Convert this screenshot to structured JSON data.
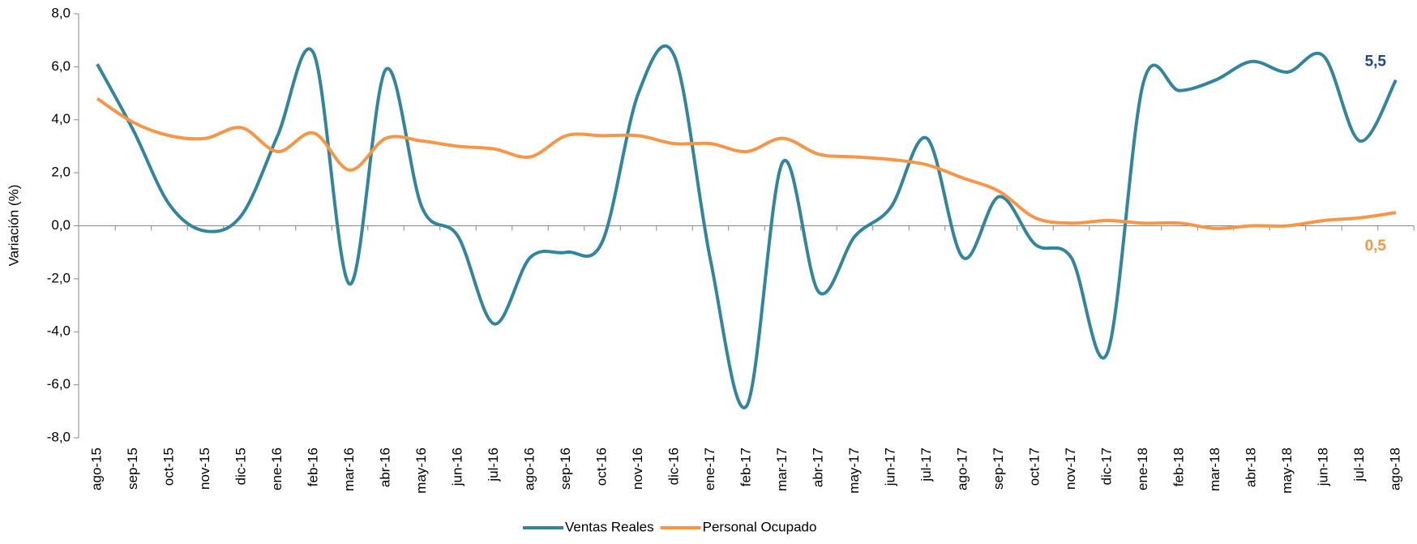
{
  "chart_data": {
    "type": "line",
    "y_label": "Variación (%)",
    "categories": [
      "ago-15",
      "sep-15",
      "oct-15",
      "nov-15",
      "dic-15",
      "ene-16",
      "feb-16",
      "mar-16",
      "abr-16",
      "may-16",
      "jun-16",
      "jul-16",
      "ago-16",
      "sep-16",
      "oct-16",
      "nov-16",
      "dic-16",
      "ene-17",
      "feb-17",
      "mar-17",
      "abr-17",
      "may-17",
      "jun-17",
      "jul-17",
      "ago-17",
      "sep-17",
      "oct-17",
      "nov-17",
      "dic-17",
      "ene-18",
      "feb-18",
      "mar-18",
      "abr-18",
      "may-18",
      "jun-18",
      "jul-18",
      "ago-18"
    ],
    "series": [
      {
        "name": "Ventas Reales",
        "color": "#31859c",
        "label_color": "#1f497d",
        "values": [
          6.1,
          3.6,
          0.8,
          -0.2,
          0.4,
          3.4,
          6.5,
          -2.2,
          5.9,
          0.7,
          -0.4,
          -3.7,
          -1.2,
          -1.0,
          -0.6,
          5.0,
          6.4,
          -1.3,
          -6.8,
          2.4,
          -2.5,
          -0.4,
          0.7,
          3.3,
          -1.2,
          1.1,
          -0.7,
          -1.2,
          -4.8,
          5.4,
          5.1,
          5.5,
          6.2,
          5.8,
          6.4,
          3.2,
          5.5
        ],
        "value_labels": [
          null,
          null,
          null,
          null,
          null,
          null,
          null,
          null,
          null,
          null,
          null,
          null,
          null,
          null,
          null,
          null,
          null,
          null,
          null,
          null,
          null,
          null,
          null,
          null,
          null,
          null,
          null,
          null,
          null,
          null,
          null,
          null,
          null,
          null,
          null,
          null,
          "5,5"
        ]
      },
      {
        "name": "Personal Ocupado",
        "color": "#f79646",
        "label_color": "#f79646",
        "values": [
          4.8,
          3.9,
          3.4,
          3.3,
          3.7,
          2.8,
          3.5,
          2.1,
          3.3,
          3.2,
          3.0,
          2.9,
          2.6,
          3.4,
          3.4,
          3.4,
          3.1,
          3.1,
          2.8,
          3.3,
          2.7,
          2.6,
          2.5,
          2.3,
          1.8,
          1.3,
          0.3,
          0.1,
          0.2,
          0.1,
          0.1,
          -0.1,
          0.0,
          0.0,
          0.2,
          0.3,
          0.5
        ],
        "value_labels": [
          null,
          null,
          null,
          null,
          null,
          null,
          null,
          null,
          null,
          null,
          null,
          null,
          null,
          null,
          null,
          null,
          null,
          null,
          null,
          null,
          null,
          null,
          null,
          null,
          null,
          null,
          null,
          null,
          null,
          null,
          null,
          null,
          null,
          null,
          null,
          null,
          "0,5"
        ]
      }
    ],
    "ylim": [
      -8,
      8
    ],
    "yticks": [
      {
        "value": -8,
        "label": "-8,0"
      },
      {
        "value": -6,
        "label": "-6,0"
      },
      {
        "value": -4,
        "label": "-4,0"
      },
      {
        "value": -2,
        "label": "-2,0"
      },
      {
        "value": 0,
        "label": "0,0"
      },
      {
        "value": 2,
        "label": "2,0"
      },
      {
        "value": 4,
        "label": "4,0"
      },
      {
        "value": 6,
        "label": "6,0"
      },
      {
        "value": 8,
        "label": "8,0"
      }
    ],
    "smooth": true
  }
}
